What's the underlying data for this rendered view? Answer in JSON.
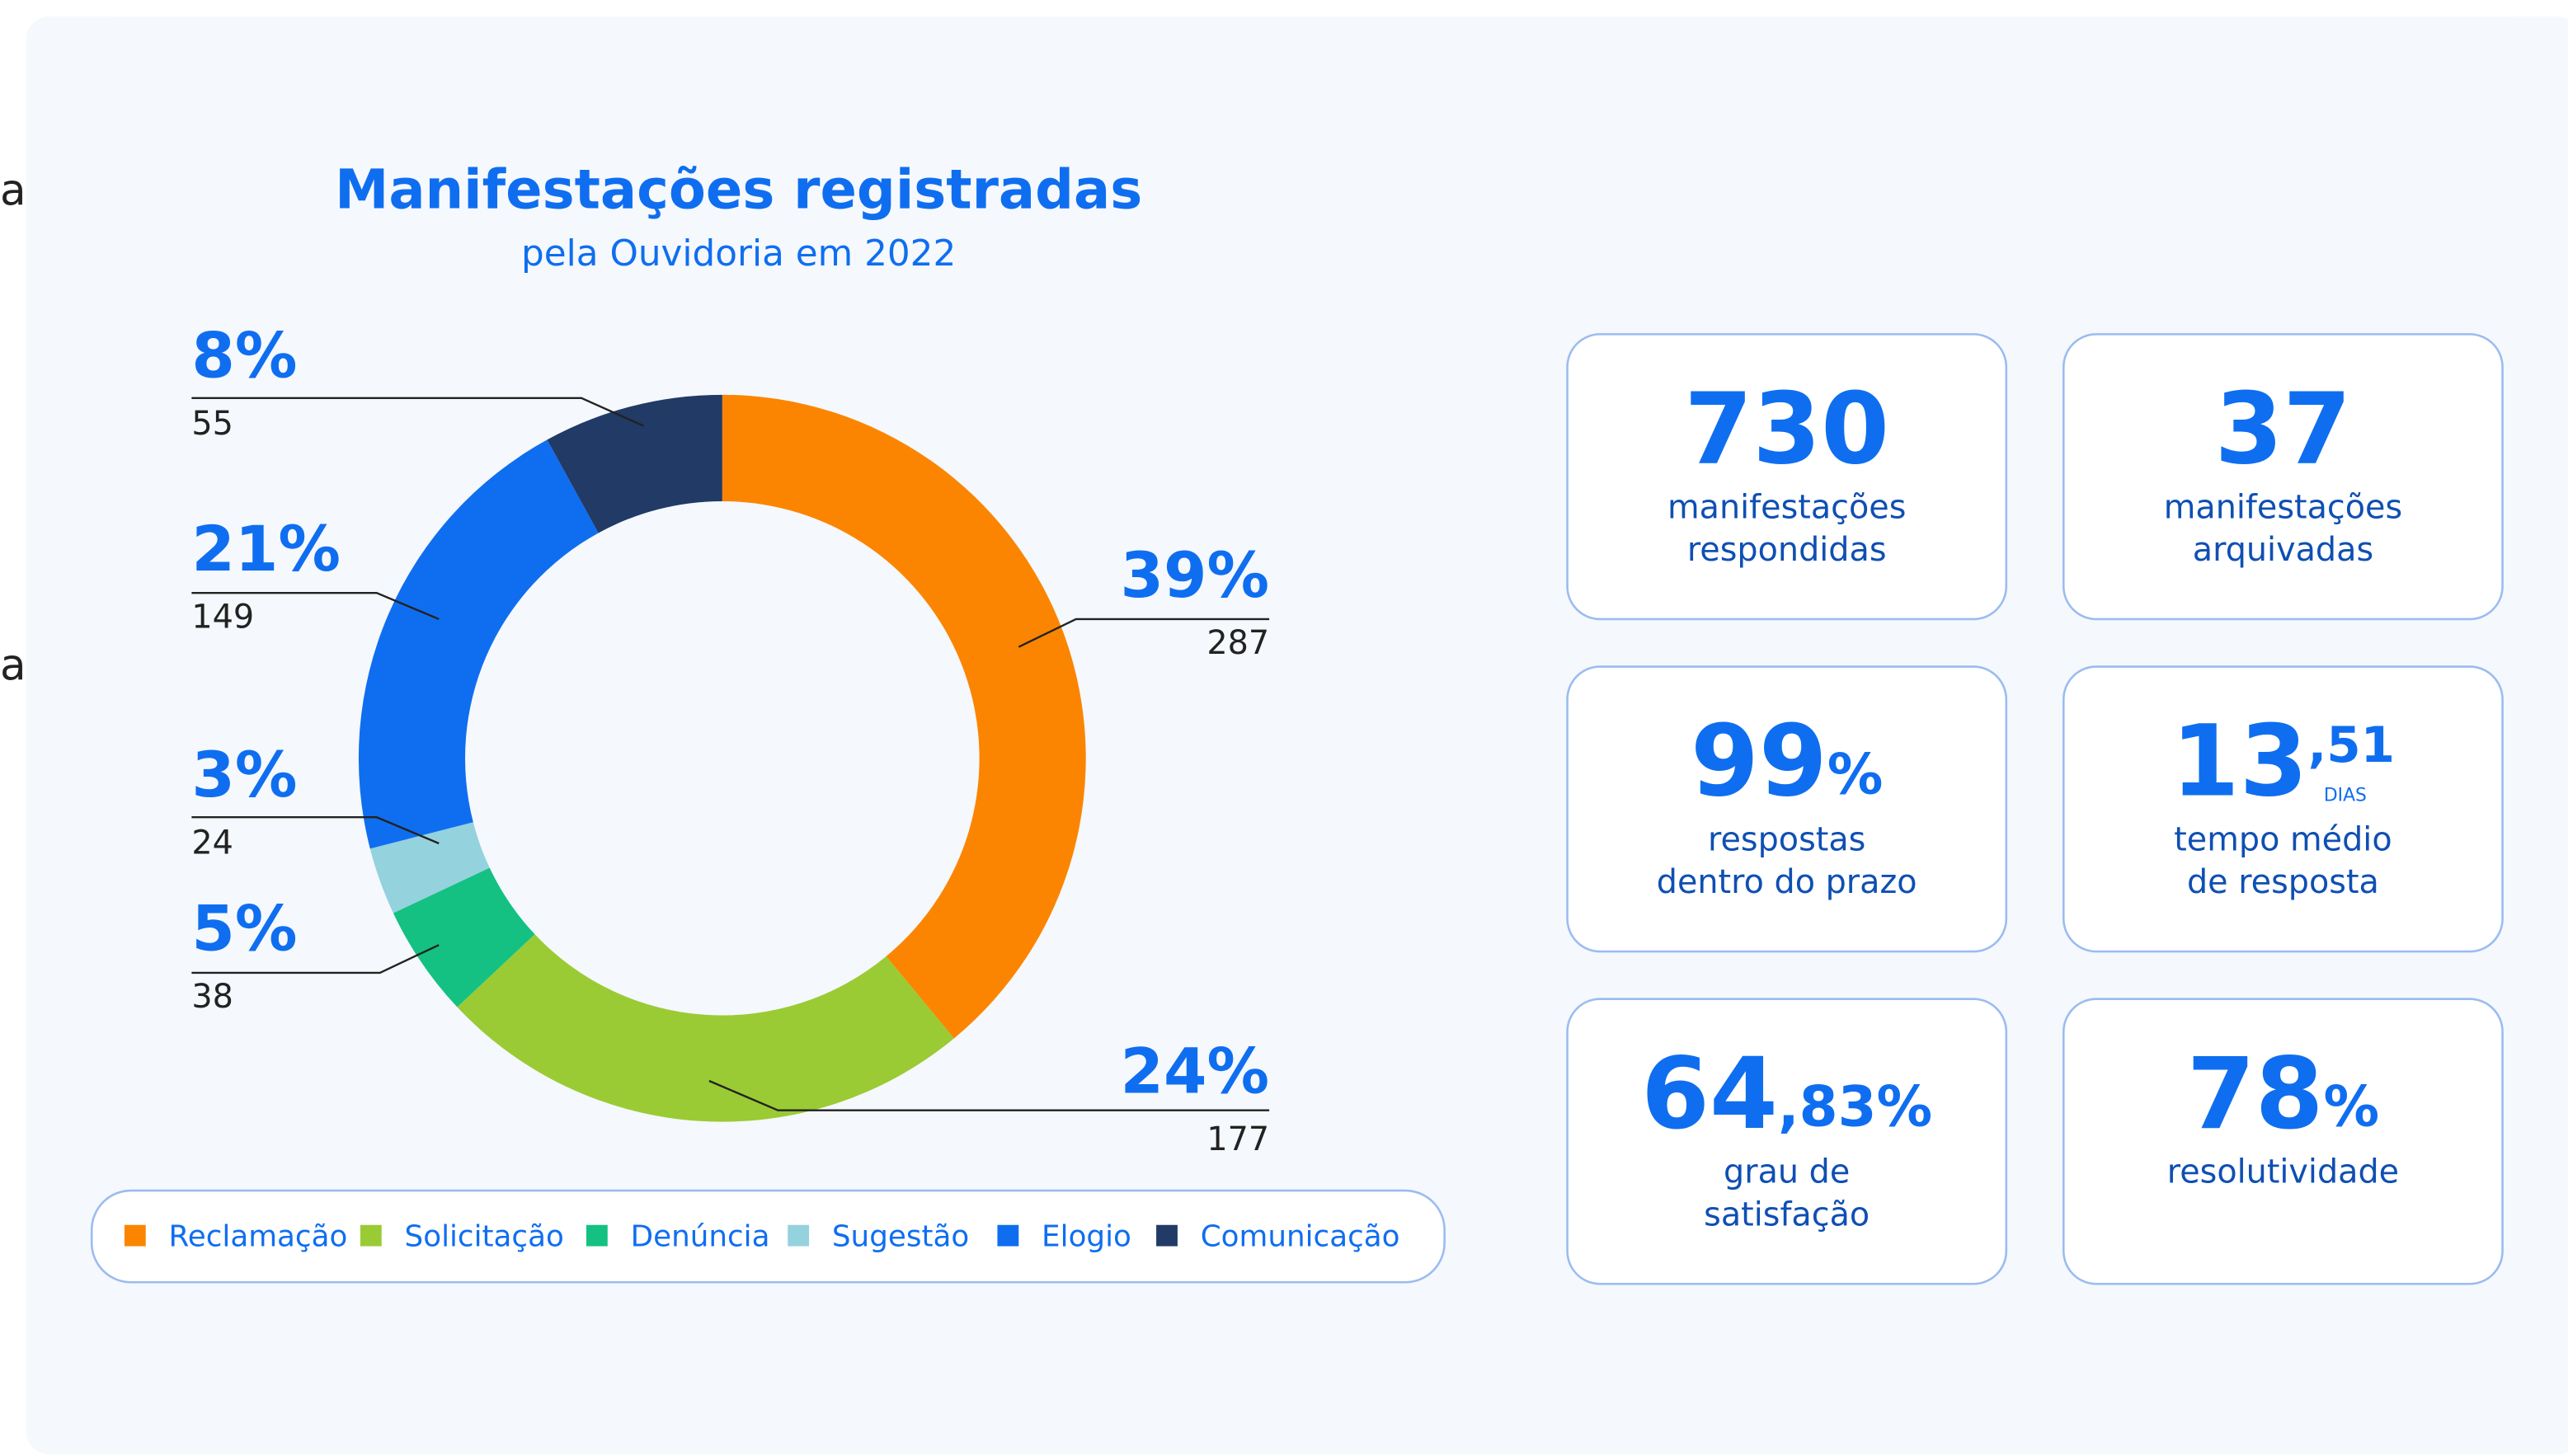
{
  "edge_fragments": [
    "a",
    "a"
  ],
  "chart_data": {
    "type": "pie",
    "donut": true,
    "title": "Manifestações registradas",
    "subtitle": "pela Ouvidoria em 2022",
    "categories": [
      "Reclamação",
      "Solicitação",
      "Denúncia",
      "Sugestão",
      "Elogio",
      "Comunicação"
    ],
    "values": [
      39,
      24,
      5,
      3,
      21,
      8
    ],
    "value_labels": [
      "39%",
      "24%",
      "5%",
      "3%",
      "21%",
      "8%"
    ],
    "counts": [
      287,
      177,
      38,
      24,
      149,
      55
    ],
    "colors": [
      "#fb8500",
      "#9acb34",
      "#14c183",
      "#94d2de",
      "#0f6ef0",
      "#213a66"
    ],
    "legend": "bottom"
  },
  "cards": [
    {
      "number": "730",
      "label": [
        "manifestações",
        "respondidas"
      ]
    },
    {
      "number": "37",
      "label": [
        "manifestações",
        "arquivadas"
      ]
    },
    {
      "number": "99",
      "suffix": "%",
      "label": [
        "respostas",
        "dentro do prazo"
      ]
    },
    {
      "number": "13",
      "suffix": ",51",
      "unit": "DIAS",
      "label": [
        "tempo médio",
        "de resposta"
      ]
    },
    {
      "number": "64",
      "suffix": ",83%",
      "label": [
        "grau de",
        "satisfação"
      ]
    },
    {
      "number": "78",
      "suffix": "%",
      "label": [
        "resolutividade"
      ]
    }
  ]
}
